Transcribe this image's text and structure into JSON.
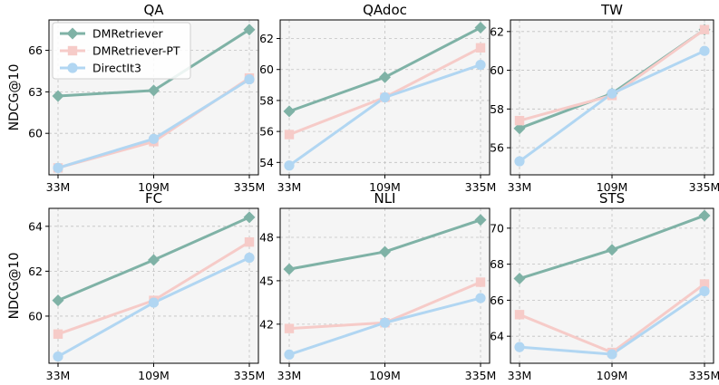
{
  "chart_data": [
    {
      "type": "line",
      "title": "QA",
      "ylabel": "NDCG@10",
      "categories": [
        "33M",
        "109M",
        "335M"
      ],
      "yticks": [
        60,
        63,
        66
      ],
      "ylim": [
        57.0,
        68.2
      ],
      "series": [
        {
          "name": "DMRetriever",
          "values": [
            62.7,
            63.1,
            67.5
          ]
        },
        {
          "name": "DMRetriever-PT",
          "values": [
            57.5,
            59.4,
            64.0
          ]
        },
        {
          "name": "DirectIt3",
          "values": [
            57.5,
            59.6,
            63.9
          ]
        }
      ]
    },
    {
      "type": "line",
      "title": "QAdoc",
      "ylabel": "",
      "categories": [
        "33M",
        "109M",
        "335M"
      ],
      "yticks": [
        54,
        56,
        58,
        60,
        62
      ],
      "ylim": [
        53.2,
        63.2
      ],
      "series": [
        {
          "name": "DMRetriever",
          "values": [
            57.3,
            59.5,
            62.7
          ]
        },
        {
          "name": "DMRetriever-PT",
          "values": [
            55.8,
            58.2,
            61.4
          ]
        },
        {
          "name": "DirectIt3",
          "values": [
            53.8,
            58.2,
            60.3
          ]
        }
      ]
    },
    {
      "type": "line",
      "title": "TW",
      "ylabel": "",
      "categories": [
        "33M",
        "109M",
        "335M"
      ],
      "yticks": [
        56,
        58,
        60,
        62
      ],
      "ylim": [
        54.6,
        62.6
      ],
      "series": [
        {
          "name": "DMRetriever",
          "values": [
            57.0,
            58.8,
            62.1
          ]
        },
        {
          "name": "DMRetriever-PT",
          "values": [
            57.4,
            58.7,
            62.1
          ]
        },
        {
          "name": "DirectIt3",
          "values": [
            55.3,
            58.8,
            61.0
          ]
        }
      ]
    },
    {
      "type": "line",
      "title": "FC",
      "ylabel": "NDCG@10",
      "categories": [
        "33M",
        "109M",
        "335M"
      ],
      "yticks": [
        60,
        62,
        64
      ],
      "ylim": [
        57.9,
        64.8
      ],
      "series": [
        {
          "name": "DMRetriever",
          "values": [
            60.7,
            62.5,
            64.4
          ]
        },
        {
          "name": "DMRetriever-PT",
          "values": [
            59.2,
            60.7,
            63.3
          ]
        },
        {
          "name": "DirectIt3",
          "values": [
            58.2,
            60.6,
            62.6
          ]
        }
      ]
    },
    {
      "type": "line",
      "title": "NLI",
      "ylabel": "",
      "categories": [
        "33M",
        "109M",
        "335M"
      ],
      "yticks": [
        42,
        45,
        48
      ],
      "ylim": [
        39.3,
        50.0
      ],
      "series": [
        {
          "name": "DMRetriever",
          "values": [
            45.8,
            47.0,
            49.2
          ]
        },
        {
          "name": "DMRetriever-PT",
          "values": [
            41.7,
            42.1,
            44.9
          ]
        },
        {
          "name": "DirectIt3",
          "values": [
            39.9,
            42.1,
            43.8
          ]
        }
      ]
    },
    {
      "type": "line",
      "title": "STS",
      "ylabel": "",
      "categories": [
        "33M",
        "109M",
        "335M"
      ],
      "yticks": [
        64,
        66,
        68,
        70
      ],
      "ylim": [
        62.5,
        71.1
      ],
      "series": [
        {
          "name": "DMRetriever",
          "values": [
            67.2,
            68.8,
            70.7
          ]
        },
        {
          "name": "DMRetriever-PT",
          "values": [
            65.2,
            63.1,
            66.9
          ]
        },
        {
          "name": "DirectIt3",
          "values": [
            63.4,
            63.0,
            66.5
          ]
        }
      ]
    }
  ],
  "legend": {
    "placement": "top-left of first panel",
    "entries": [
      {
        "name": "DMRetriever",
        "color": "#7fb2a6",
        "marker": "diamond"
      },
      {
        "name": "DMRetriever-PT",
        "color": "#f6cbc8",
        "marker": "square"
      },
      {
        "name": "DirectIt3",
        "color": "#b1d6f2",
        "marker": "circle"
      }
    ]
  },
  "style": {
    "panel_bg": "#f5f5f5",
    "grid_color": "#c2c2c2"
  }
}
